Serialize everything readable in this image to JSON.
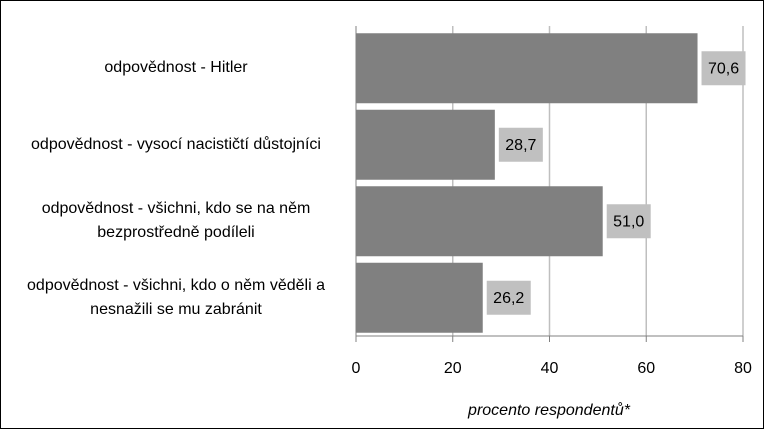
{
  "chart_data": {
    "type": "bar",
    "orientation": "horizontal",
    "categories": [
      "odpovědnost - Hitler",
      "odpovědnost - vysocí nacističtí důstojníci",
      "odpovědnost - všichni, kdo se na něm bezprostředně podíleli",
      "odpovědnost - všichni, kdo o něm věděli a nesnažili se mu zabránit"
    ],
    "values": [
      70.6,
      28.7,
      51.0,
      26.2
    ],
    "value_labels": [
      "70,6",
      "28,7",
      "51,0",
      "26,2"
    ],
    "color": "#808080",
    "label_color": "#c0c0c0",
    "xlabel": "procento respondentů*",
    "xlim": [
      0,
      80
    ],
    "xticks": [
      0,
      20,
      40,
      60,
      80
    ],
    "grid": true
  }
}
